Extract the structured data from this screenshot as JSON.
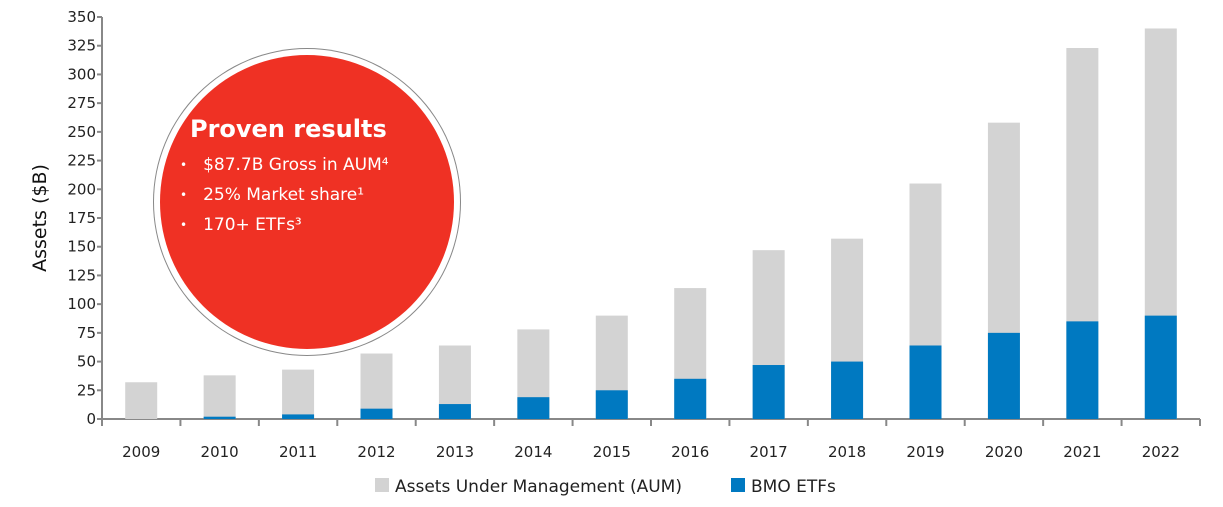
{
  "chart_data": {
    "type": "bar",
    "title": "",
    "xlabel": "",
    "ylabel": "Assets ($B)",
    "ylim": [
      0,
      350
    ],
    "yticks": [
      0,
      25,
      50,
      75,
      100,
      125,
      150,
      175,
      200,
      225,
      250,
      275,
      300,
      325,
      350
    ],
    "categories": [
      "2009",
      "2010",
      "2011",
      "2012",
      "2013",
      "2014",
      "2015",
      "2016",
      "2017",
      "2018",
      "2019",
      "2020",
      "2021",
      "2022"
    ],
    "series": [
      {
        "name": "Assets Under Management (AUM)",
        "color": "#d3d3d3",
        "values": [
          32,
          38,
          43,
          57,
          64,
          78,
          90,
          114,
          147,
          157,
          205,
          258,
          323,
          340
        ]
      },
      {
        "name": "BMO ETFs",
        "color": "#0079c1",
        "values": [
          0,
          2,
          4,
          9,
          13,
          19,
          25,
          35,
          47,
          50,
          64,
          75,
          85,
          90
        ]
      }
    ],
    "legend": "bottom-center",
    "grid": false
  },
  "callout": {
    "title": "Proven results",
    "items": [
      "$87.7B Gross in AUM⁴",
      "25% Market share¹",
      "170+ ETFs³"
    ]
  }
}
